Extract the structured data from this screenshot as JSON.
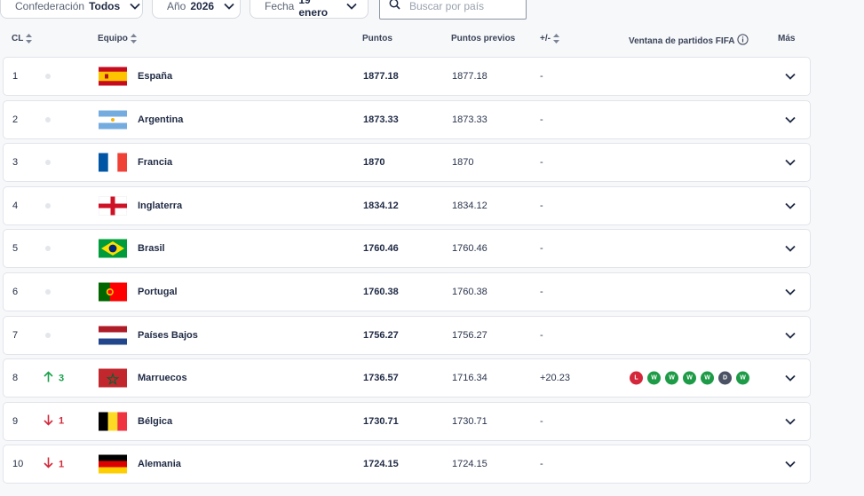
{
  "filters": {
    "confederation": {
      "label": "Confederación",
      "value": "Todos"
    },
    "year": {
      "label": "Año",
      "value": "2026"
    },
    "date": {
      "label": "Fecha",
      "value": "19 enero"
    },
    "search": {
      "placeholder": "Buscar por país",
      "value": ""
    }
  },
  "columns": {
    "rank": "CL",
    "team": "Equipo",
    "points": "Puntos",
    "previous_points": "Puntos previos",
    "change": "+/-",
    "match_window": "Ventana de partidos FIFA",
    "more": "Más"
  },
  "colors": {
    "up": "#1aa04b",
    "down": "#d4283a",
    "win": "#1e9b46",
    "loss": "#d4283a",
    "draw": "#4a5263"
  },
  "rows": [
    {
      "rank": "1",
      "move": "",
      "trend": "same",
      "flag": "spain-flag",
      "team": "España",
      "points": "1877.18",
      "previous": "1877.18",
      "diff": "-",
      "form": []
    },
    {
      "rank": "2",
      "move": "",
      "trend": "same",
      "flag": "argentina-flag",
      "team": "Argentina",
      "points": "1873.33",
      "previous": "1873.33",
      "diff": "-",
      "form": []
    },
    {
      "rank": "3",
      "move": "",
      "trend": "same",
      "flag": "france-flag",
      "team": "Francia",
      "points": "1870",
      "previous": "1870",
      "diff": "-",
      "form": []
    },
    {
      "rank": "4",
      "move": "",
      "trend": "same",
      "flag": "england-flag",
      "team": "Inglaterra",
      "points": "1834.12",
      "previous": "1834.12",
      "diff": "-",
      "form": []
    },
    {
      "rank": "5",
      "move": "",
      "trend": "same",
      "flag": "brazil-flag",
      "team": "Brasil",
      "points": "1760.46",
      "previous": "1760.46",
      "diff": "-",
      "form": []
    },
    {
      "rank": "6",
      "move": "",
      "trend": "same",
      "flag": "portugal-flag",
      "team": "Portugal",
      "points": "1760.38",
      "previous": "1760.38",
      "diff": "-",
      "form": []
    },
    {
      "rank": "7",
      "move": "",
      "trend": "same",
      "flag": "netherlands-flag",
      "team": "Países Bajos",
      "points": "1756.27",
      "previous": "1756.27",
      "diff": "-",
      "form": []
    },
    {
      "rank": "8",
      "move": "3",
      "trend": "up",
      "flag": "morocco-flag",
      "team": "Marruecos",
      "points": "1736.57",
      "previous": "1716.34",
      "diff": "+20.23",
      "form": [
        "L",
        "W",
        "W",
        "W",
        "W",
        "D",
        "W"
      ]
    },
    {
      "rank": "9",
      "move": "1",
      "trend": "down",
      "flag": "belgium-flag",
      "team": "Bélgica",
      "points": "1730.71",
      "previous": "1730.71",
      "diff": "-",
      "form": []
    },
    {
      "rank": "10",
      "move": "1",
      "trend": "down",
      "flag": "germany-flag",
      "team": "Alemania",
      "points": "1724.15",
      "previous": "1724.15",
      "diff": "-",
      "form": []
    }
  ]
}
